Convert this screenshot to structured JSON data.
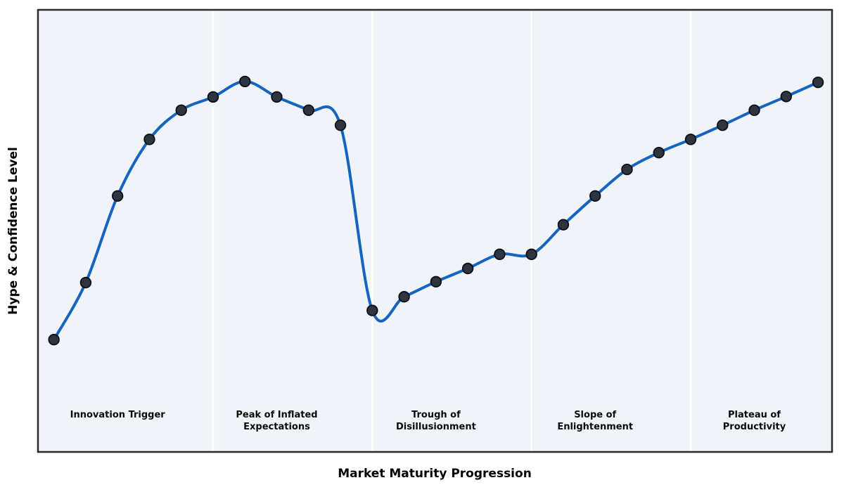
{
  "figure": {
    "background_color": "#ffffff",
    "plot_background_color": "#f0f4f8",
    "border_color": "#2a2a2a"
  },
  "chart_data": {
    "type": "line",
    "title": "",
    "xlabel": "Market Maturity Progression",
    "ylabel": "Hype & Confidence Level",
    "x": [
      0,
      1,
      2,
      3,
      4,
      5,
      6,
      7,
      8,
      9,
      10,
      11,
      12,
      13,
      14,
      15,
      16,
      17,
      18,
      19,
      20,
      21,
      22,
      23,
      24
    ],
    "y": [
      25.4,
      38.3,
      57.9,
      70.7,
      77.3,
      80.3,
      83.8,
      80.3,
      77.3,
      73.9,
      32.0,
      35.1,
      38.5,
      41.5,
      44.7,
      44.7,
      51.4,
      57.9,
      63.9,
      67.7,
      70.7,
      73.9,
      77.3,
      80.4,
      83.6
    ],
    "xlim": [
      -0.5,
      24.44
    ],
    "ylim": [
      0,
      100
    ],
    "grid": false,
    "legend": "none",
    "axis_ticks": "none",
    "curve_style": "smooth-spline",
    "line_color": "#1565c0",
    "line_width": 4,
    "marker_shape": "circle",
    "marker_color": "#2d3540",
    "marker_edge_color": "#0b0f14",
    "divider_color": "#ffffff",
    "dividers_x": [
      5,
      10,
      15,
      20
    ],
    "phases": [
      {
        "label": "Innovation Trigger",
        "lines": [
          "Innovation Trigger"
        ],
        "center_x": 2,
        "start_x": -0.5,
        "end_x": 5
      },
      {
        "label": "Peak of Inflated Expectations",
        "lines": [
          "Peak of Inflated",
          "Expectations"
        ],
        "center_x": 7,
        "start_x": 5,
        "end_x": 10
      },
      {
        "label": "Trough of Disillusionment",
        "lines": [
          "Trough of",
          "Disillusionment"
        ],
        "center_x": 12,
        "start_x": 10,
        "end_x": 15
      },
      {
        "label": "Slope of Enlightenment",
        "lines": [
          "Slope of",
          "Enlightenment"
        ],
        "center_x": 17,
        "start_x": 15,
        "end_x": 20
      },
      {
        "label": "Plateau of Productivity",
        "lines": [
          "Plateau of",
          "Productivity"
        ],
        "center_x": 22,
        "start_x": 20,
        "end_x": 24.44
      }
    ]
  }
}
